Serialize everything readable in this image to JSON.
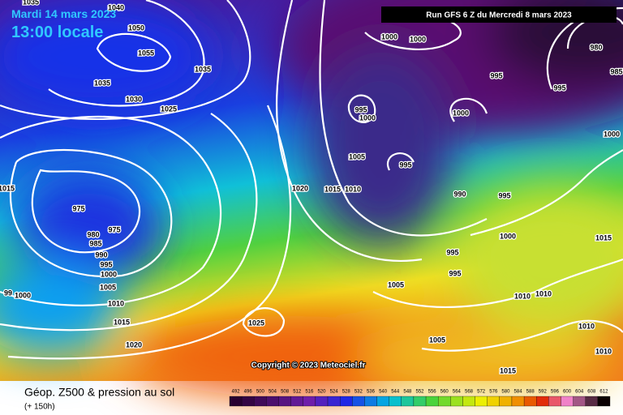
{
  "header": {
    "date": "Mardi 14 mars 2023",
    "time": "13:00 locale",
    "run": "Run GFS 6 Z du Mercredi 8 mars 2023"
  },
  "isobar_labels": [
    "1035",
    "1040",
    "1050",
    "1055",
    "1035",
    "1035",
    "1030",
    "1025",
    "1015",
    "975",
    "975",
    "980",
    "985",
    "990",
    "995",
    "1000",
    "1005",
    "99",
    "1000",
    "1010",
    "1015",
    "1020",
    "1025",
    "1020",
    "1015",
    "1010",
    "1005",
    "995",
    "1000",
    "995",
    "1000",
    "1000",
    "1000",
    "990",
    "995",
    "995",
    "995",
    "985",
    "980",
    "1000",
    "1000",
    "995",
    "995",
    "1005",
    "1010",
    "1010",
    "1015",
    "1010",
    "1010",
    "1005",
    "1015"
  ],
  "copyright": "Copyright © 2023 Meteociel.fr",
  "footer": {
    "title": "Géop. Z500 & pression au sol",
    "subtitle": "(+ 150h)"
  },
  "legend": {
    "labels": [
      492,
      496,
      500,
      504,
      508,
      512,
      516,
      520,
      524,
      528,
      532,
      536,
      540,
      544,
      548,
      552,
      556,
      560,
      564,
      568,
      572,
      576,
      580,
      584,
      588,
      592,
      596,
      600,
      604,
      608,
      612
    ]
  }
}
